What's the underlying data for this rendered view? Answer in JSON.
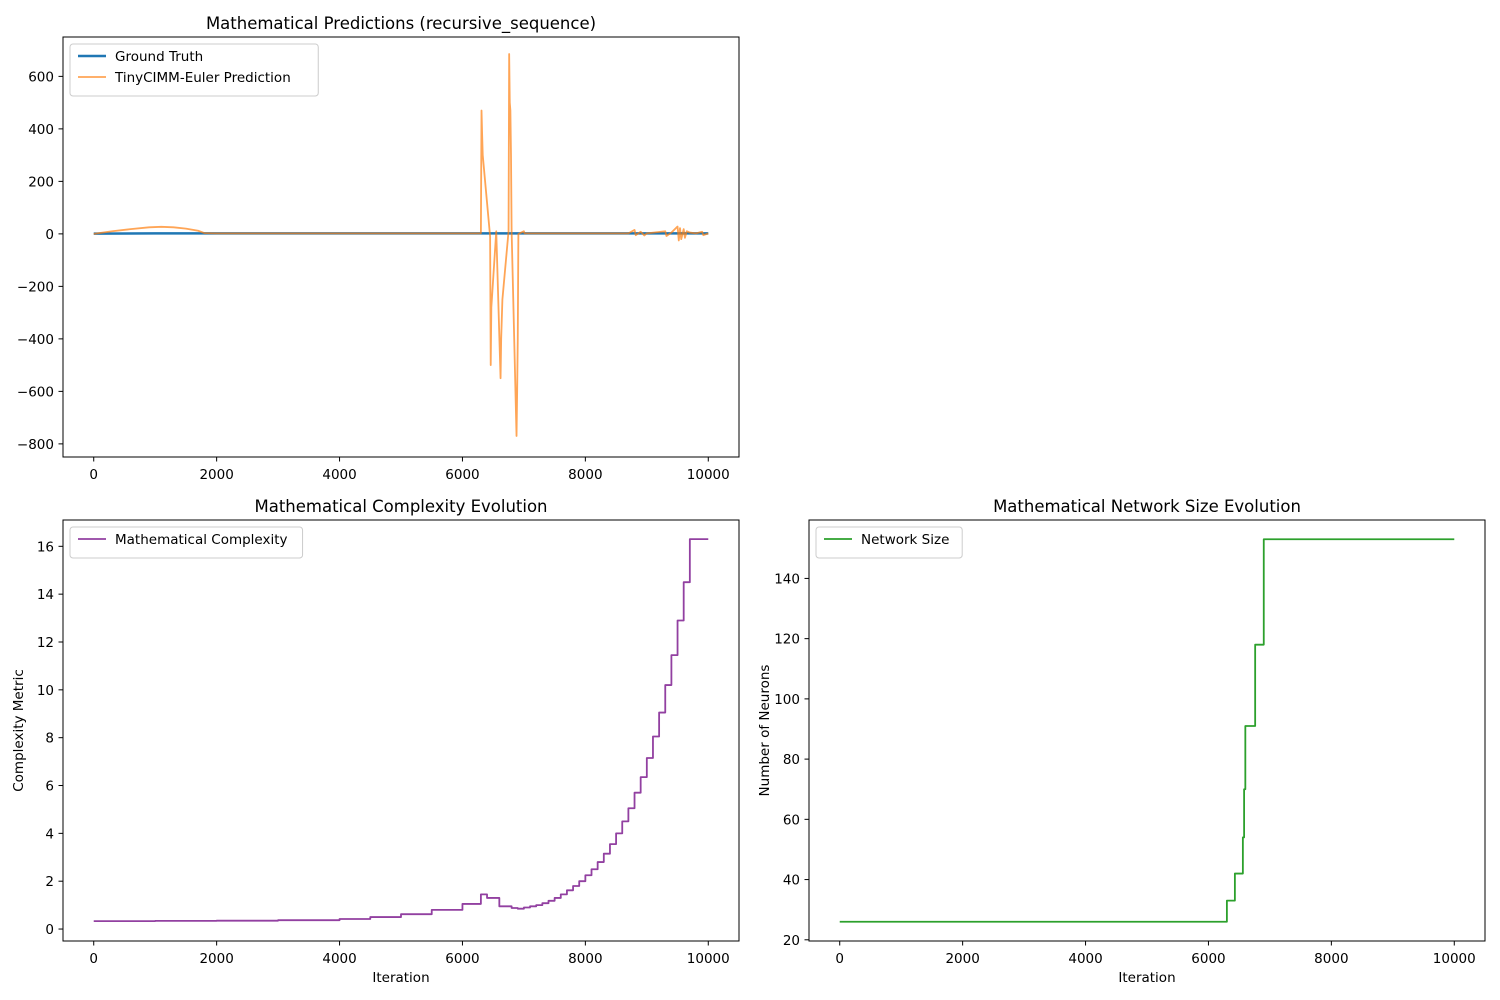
{
  "chart_data": [
    {
      "id": "predictions",
      "type": "line",
      "title": "Mathematical Predictions (recursive_sequence)",
      "xlabel": "",
      "ylabel": "",
      "xlim": [
        -500,
        10500
      ],
      "ylim": [
        -850,
        750
      ],
      "xticks": [
        0,
        2000,
        4000,
        6000,
        8000,
        10000
      ],
      "xtick_labels": [
        "0",
        "2000",
        "4000",
        "6000",
        "8000",
        "10000"
      ],
      "yticks": [
        -800,
        -600,
        -400,
        -200,
        0,
        200,
        400,
        600
      ],
      "ytick_labels": [
        "−800",
        "−600",
        "−400",
        "−200",
        "0",
        "200",
        "400",
        "600"
      ],
      "grid": false,
      "legend": "upper left",
      "series": [
        {
          "name": "Ground Truth",
          "color": "#1f77b4",
          "width": 2.5,
          "x": [
            0,
            1000,
            2000,
            3000,
            4000,
            5000,
            6000,
            7000,
            8000,
            9000,
            10000
          ],
          "y": [
            1,
            2,
            2,
            2,
            2,
            2,
            2,
            2,
            2,
            2,
            2
          ]
        },
        {
          "name": "TinyCIMM-Euler Prediction",
          "color": "#ff7f0e",
          "opacity": 0.7,
          "width": 1.8,
          "x": [
            0,
            300,
            600,
            900,
            1100,
            1300,
            1500,
            1700,
            1800,
            2000,
            3000,
            4000,
            5000,
            6000,
            6300,
            6310,
            6320,
            6330,
            6450,
            6460,
            6470,
            6550,
            6620,
            6630,
            6650,
            6750,
            6760,
            6770,
            6780,
            6790,
            6800,
            6880,
            6890,
            6900,
            6910,
            7000,
            7010,
            7100,
            8000,
            8700,
            8800,
            8820,
            8900,
            8960,
            9000,
            9300,
            9320,
            9400,
            9500,
            9520,
            9540,
            9560,
            9600,
            9620,
            9650,
            9700,
            9800,
            9900,
            9920,
            10000
          ],
          "y": [
            0,
            10,
            18,
            25,
            27,
            25,
            20,
            12,
            3,
            2,
            2,
            2,
            2,
            2,
            2,
            470,
            380,
            300,
            -10,
            -500,
            -280,
            10,
            -550,
            -400,
            -250,
            10,
            685,
            500,
            470,
            300,
            10,
            -770,
            -600,
            -400,
            0,
            10,
            2,
            2,
            2,
            2,
            15,
            -5,
            8,
            -6,
            2,
            10,
            -8,
            5,
            28,
            -25,
            22,
            -20,
            18,
            -15,
            10,
            5,
            2,
            8,
            -5,
            2
          ]
        }
      ]
    },
    {
      "id": "complexity",
      "type": "line",
      "title": "Mathematical Complexity Evolution",
      "xlabel": "Iteration",
      "ylabel": "Complexity Metric",
      "xlim": [
        -500,
        10500
      ],
      "ylim": [
        -0.5,
        17.1
      ],
      "xticks": [
        0,
        2000,
        4000,
        6000,
        8000,
        10000
      ],
      "xtick_labels": [
        "0",
        "2000",
        "4000",
        "6000",
        "8000",
        "10000"
      ],
      "yticks": [
        0,
        2,
        4,
        6,
        8,
        10,
        12,
        14,
        16
      ],
      "ytick_labels": [
        "0",
        "2",
        "4",
        "6",
        "8",
        "10",
        "12",
        "14",
        "16"
      ],
      "grid": false,
      "legend": "upper left",
      "series": [
        {
          "name": "Mathematical Complexity",
          "color": "#7f1f91",
          "opacity": 0.85,
          "width": 1.8,
          "step": true,
          "x": [
            0,
            1000,
            2000,
            3000,
            4000,
            4500,
            5000,
            5500,
            6000,
            6300,
            6400,
            6500,
            6600,
            6700,
            6800,
            6900,
            7000,
            7100,
            7200,
            7300,
            7400,
            7500,
            7600,
            7700,
            7800,
            7900,
            8000,
            8100,
            8200,
            8300,
            8400,
            8500,
            8600,
            8700,
            8800,
            8900,
            9000,
            9100,
            9200,
            9300,
            9400,
            9500,
            9600,
            9700,
            9800,
            9900,
            10000
          ],
          "y": [
            0.33,
            0.34,
            0.35,
            0.37,
            0.42,
            0.5,
            0.62,
            0.8,
            1.05,
            1.45,
            1.3,
            1.3,
            0.95,
            0.95,
            0.88,
            0.85,
            0.9,
            0.95,
            1.0,
            1.08,
            1.18,
            1.3,
            1.45,
            1.62,
            1.8,
            2.0,
            2.25,
            2.5,
            2.8,
            3.15,
            3.55,
            4.0,
            4.5,
            5.05,
            5.7,
            6.35,
            7.15,
            8.05,
            9.05,
            10.2,
            11.45,
            12.9,
            14.5,
            16.3,
            16.3,
            16.3,
            16.3
          ]
        }
      ]
    },
    {
      "id": "network-size",
      "type": "line",
      "title": "Mathematical Network Size Evolution",
      "xlabel": "Iteration",
      "ylabel": "Number of Neurons",
      "xlim": [
        -500,
        10500
      ],
      "ylim": [
        19.6,
        159.4
      ],
      "xticks": [
        0,
        2000,
        4000,
        6000,
        8000,
        10000
      ],
      "xtick_labels": [
        "0",
        "2000",
        "4000",
        "6000",
        "8000",
        "10000"
      ],
      "yticks": [
        20,
        40,
        60,
        80,
        100,
        120,
        140
      ],
      "ytick_labels": [
        "20",
        "40",
        "60",
        "80",
        "100",
        "120",
        "140"
      ],
      "grid": false,
      "legend": "upper left",
      "series": [
        {
          "name": "Network Size",
          "color": "#2ca02c",
          "width": 1.8,
          "step": true,
          "x": [
            0,
            6300,
            6430,
            6560,
            6580,
            6600,
            6760,
            6900,
            10000
          ],
          "y": [
            26,
            33,
            42,
            54,
            70,
            91,
            118,
            153,
            153
          ]
        }
      ]
    }
  ]
}
